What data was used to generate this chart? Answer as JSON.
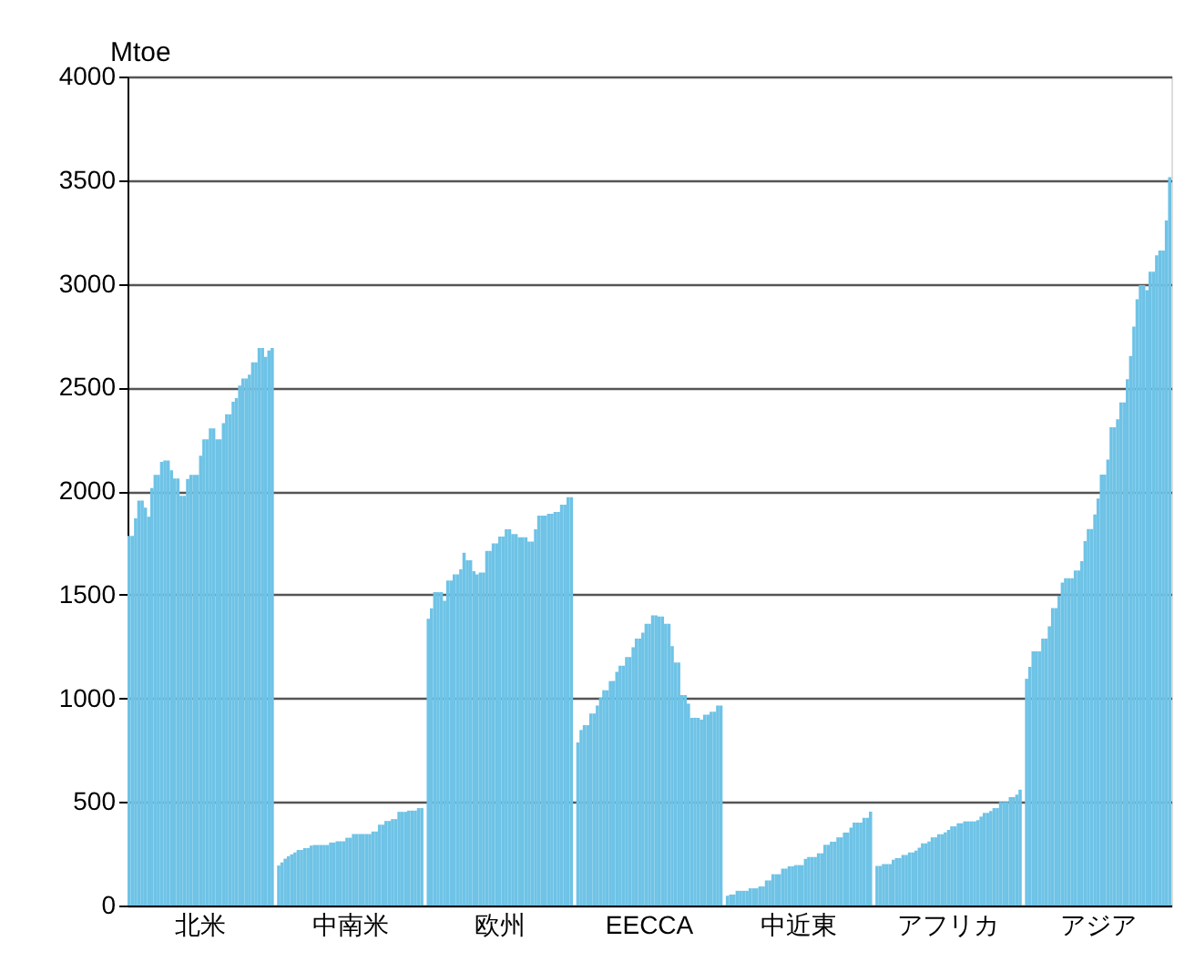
{
  "chart_data": {
    "type": "bar",
    "ylabel": "Mtoe",
    "ylim": [
      0,
      4000
    ],
    "yticks": [
      0,
      500,
      1000,
      1500,
      2000,
      2500,
      3000,
      3500,
      4000
    ],
    "grid": "y",
    "color": "#6ec3e6",
    "categories": [
      null,
      null,
      null,
      null,
      null,
      null,
      null,
      null,
      null,
      null,
      null,
      null,
      null,
      null,
      null,
      null,
      null,
      null,
      null,
      null,
      null,
      null,
      "北米",
      null,
      null,
      null,
      null,
      null,
      null,
      null,
      null,
      null,
      null,
      null,
      null,
      null,
      null,
      null,
      null,
      null,
      null,
      null,
      null,
      null,
      null,
      null,
      null,
      null,
      null,
      null,
      null,
      null,
      null,
      null,
      null,
      null,
      null,
      null,
      null,
      null,
      null,
      null,
      null,
      null,
      null,
      null,
      null,
      null,
      "中南米",
      null,
      null,
      null,
      null,
      null,
      null,
      null,
      null,
      null,
      null,
      null,
      null,
      null,
      null,
      null,
      null,
      null,
      null,
      null,
      null,
      null,
      null,
      null,
      null,
      null,
      null,
      null,
      null,
      null,
      null,
      null,
      null,
      null,
      null,
      null,
      null,
      null,
      null,
      null,
      null,
      null,
      null,
      null,
      null,
      null,
      "欧州",
      null,
      null,
      null,
      null,
      null,
      null,
      null,
      null,
      null,
      null,
      null,
      null,
      null,
      null,
      null,
      null,
      null,
      null,
      null,
      null,
      null,
      null,
      null,
      null,
      null,
      null,
      null,
      null,
      null,
      null,
      null,
      null,
      null,
      null,
      null,
      null,
      null,
      null,
      null,
      null,
      null,
      null,
      null,
      null,
      null,
      "EECCA",
      null,
      null,
      null,
      null,
      null,
      null,
      null,
      null,
      null,
      null,
      null,
      null,
      null,
      null,
      null,
      null,
      null,
      null,
      null,
      null,
      null,
      null,
      null,
      null,
      null,
      null,
      null,
      null,
      null,
      null,
      null,
      null,
      null,
      null,
      null,
      null,
      null,
      null,
      null,
      null,
      null,
      null,
      null,
      null,
      null,
      "中近東",
      null,
      null,
      null,
      null,
      null,
      null,
      null,
      null,
      null,
      null,
      null,
      null,
      null,
      null,
      null,
      null,
      null,
      null,
      null,
      null,
      null,
      null,
      null,
      null,
      null,
      null,
      null,
      null,
      null,
      null,
      null,
      null,
      null,
      null,
      null,
      null,
      null,
      null,
      null,
      null,
      null,
      null,
      null,
      null,
      null,
      "アフリカ",
      null,
      null,
      null,
      null,
      null,
      null,
      null,
      null,
      null,
      null,
      null,
      null,
      null,
      null,
      null,
      null,
      null,
      null,
      null,
      null,
      null,
      null,
      null,
      null,
      null,
      null,
      null,
      null,
      null,
      null,
      null,
      null,
      null,
      null,
      null,
      null,
      null,
      null,
      null,
      null,
      null,
      null,
      null,
      null,
      null,
      "アジア",
      null,
      null,
      null,
      null,
      null,
      null,
      null,
      null,
      null,
      null,
      null,
      null,
      null,
      null,
      null,
      null,
      null,
      null,
      null,
      null,
      null,
      null
    ],
    "values": [
      1784,
      1784,
      1868,
      1954,
      1954,
      1920,
      1876,
      2014,
      2078,
      2078,
      2141,
      2147,
      2147,
      2100,
      2060,
      2060,
      1977,
      1977,
      2058,
      2078,
      2078,
      2078,
      2170,
      2250,
      2250,
      2302,
      2302,
      2250,
      2250,
      2328,
      2370,
      2370,
      2431,
      2448,
      2509,
      2543,
      2543,
      2561,
      2621,
      2621,
      2690,
      2690,
      2647,
      2678,
      2690,
      null,
      193,
      208,
      226,
      238,
      247,
      256,
      268,
      268,
      277,
      277,
      289,
      292,
      292,
      292,
      292,
      292,
      304,
      304,
      310,
      310,
      310,
      327,
      327,
      345,
      345,
      345,
      345,
      345,
      345,
      357,
      357,
      390,
      390,
      408,
      408,
      417,
      417,
      452,
      452,
      452,
      458,
      458,
      458,
      470,
      470,
      null,
      1384,
      1434,
      1512,
      1512,
      1512,
      1470,
      1568,
      1568,
      1598,
      1598,
      1622,
      1702,
      1666,
      1666,
      1613,
      1598,
      1607,
      1607,
      1711,
      1711,
      1747,
      1747,
      1780,
      1780,
      1815,
      1815,
      1792,
      1792,
      1777,
      1777,
      1777,
      1756,
      1756,
      1815,
      1881,
      1881,
      1881,
      1890,
      1890,
      1899,
      1899,
      1934,
      1934,
      1970,
      1970,
      null,
      787,
      847,
      870,
      870,
      926,
      926,
      965,
      1003,
      1039,
      1039,
      1083,
      1083,
      1128,
      1157,
      1157,
      1199,
      1199,
      1246,
      1288,
      1288,
      1317,
      1359,
      1359,
      1400,
      1400,
      1394,
      1394,
      1359,
      1359,
      1252,
      1172,
      1172,
      1015,
      1015,
      974,
      906,
      906,
      906,
      897,
      921,
      921,
      935,
      935,
      965,
      965,
      null,
      47,
      53,
      53,
      71,
      71,
      71,
      71,
      83,
      83,
      83,
      92,
      92,
      121,
      121,
      151,
      151,
      151,
      178,
      178,
      189,
      189,
      195,
      195,
      195,
      225,
      234,
      234,
      234,
      252,
      252,
      293,
      293,
      308,
      308,
      329,
      329,
      352,
      352,
      376,
      400,
      400,
      400,
      423,
      423,
      453,
      null,
      191,
      191,
      200,
      200,
      200,
      221,
      229,
      229,
      244,
      244,
      256,
      256,
      265,
      279,
      300,
      300,
      309,
      329,
      329,
      344,
      344,
      353,
      365,
      382,
      382,
      397,
      397,
      406,
      406,
      406,
      406,
      412,
      429,
      447,
      447,
      456,
      470,
      470,
      500,
      500,
      500,
      523,
      523,
      535,
      559,
      null,
      1094,
      1152,
      1226,
      1226,
      1226,
      1288,
      1288,
      1347,
      1435,
      1435,
      1494,
      1558,
      1579,
      1579,
      1579,
      1617,
      1617,
      1661,
      1758,
      1817,
      1817,
      1887,
      1964,
      2079,
      2079,
      2152,
      2308,
      2308,
      2346,
      2428,
      2428,
      2540,
      2652,
      2793,
      2925,
      2993,
      2993,
      2969,
      3058,
      3058,
      3137,
      3160,
      3160,
      3305,
      3514
    ]
  }
}
